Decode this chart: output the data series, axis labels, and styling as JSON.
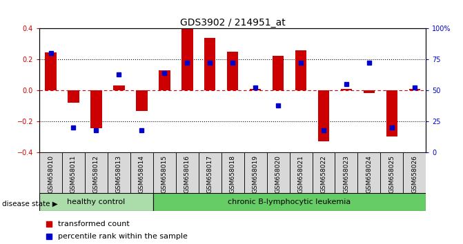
{
  "title": "GDS3902 / 214951_at",
  "samples": [
    "GSM658010",
    "GSM658011",
    "GSM658012",
    "GSM658013",
    "GSM658014",
    "GSM658015",
    "GSM658016",
    "GSM658017",
    "GSM658018",
    "GSM658019",
    "GSM658020",
    "GSM658021",
    "GSM658022",
    "GSM658023",
    "GSM658024",
    "GSM658025",
    "GSM658026"
  ],
  "red_values": [
    0.245,
    -0.08,
    -0.245,
    0.03,
    -0.135,
    0.13,
    0.395,
    0.335,
    0.25,
    0.01,
    0.22,
    0.255,
    -0.33,
    0.01,
    -0.02,
    -0.295,
    0.01
  ],
  "blue_percentile": [
    80,
    20,
    18,
    63,
    18,
    64,
    72,
    72,
    72,
    52,
    38,
    72,
    18,
    55,
    72,
    20,
    52
  ],
  "healthy_count": 5,
  "disease_count": 12,
  "healthy_label": "healthy control",
  "disease_label": "chronic B-lymphocytic leukemia",
  "disease_state_label": "disease state",
  "legend_red": "transformed count",
  "legend_blue": "percentile rank within the sample",
  "red_color": "#cc0000",
  "blue_color": "#0000cc",
  "bar_width": 0.5,
  "ylim": [
    -0.4,
    0.4
  ],
  "y2lim": [
    0,
    100
  ],
  "yticks_red": [
    -0.4,
    -0.2,
    0.0,
    0.2,
    0.4
  ],
  "yticks_blue": [
    0,
    25,
    50,
    75,
    100
  ],
  "title_fontsize": 10,
  "tick_fontsize": 7,
  "label_fontsize": 6.5,
  "healthy_color": "#aaddaa",
  "disease_color": "#66cc66",
  "label_bg_color": "#d8d8d8"
}
